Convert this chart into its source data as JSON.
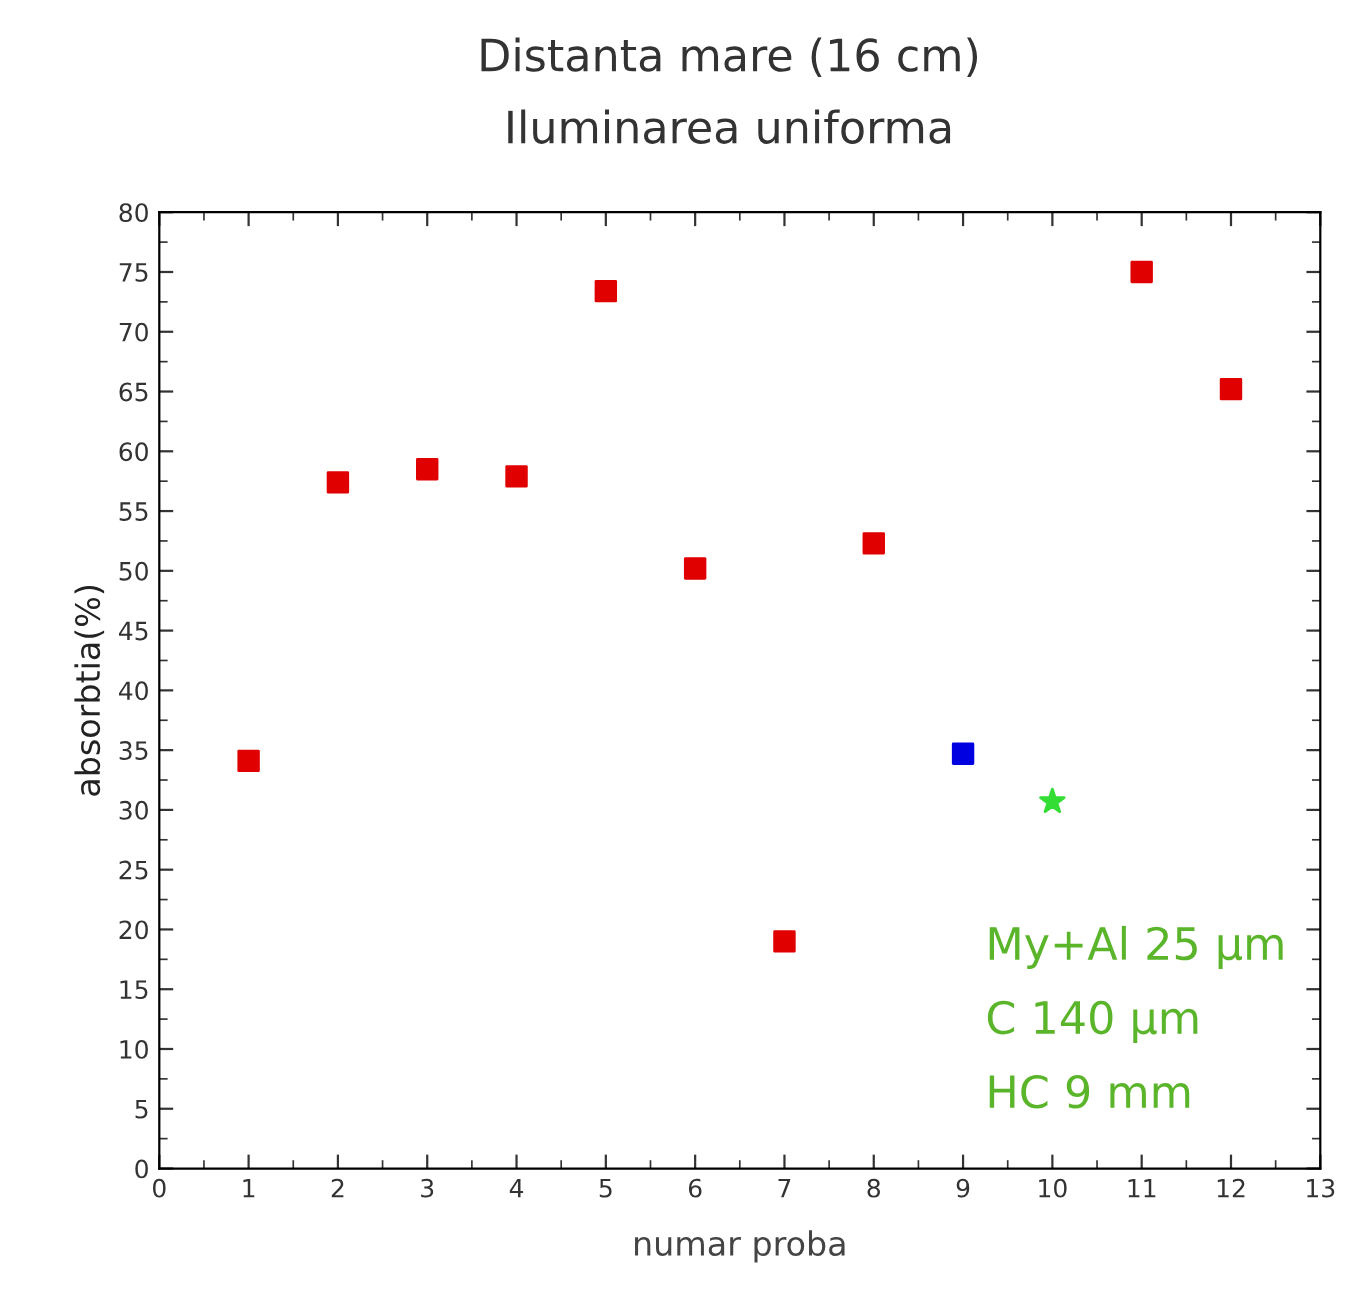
{
  "chart_data": {
    "type": "scatter",
    "title": "Distanta mare (16 cm)",
    "subtitle": "Iluminarea uniforma",
    "xlabel": "numar proba",
    "ylabel": "absorbtia(%)",
    "series": [
      {
        "color": "#e00000",
        "marker": "square",
        "x": [
          1,
          2,
          3,
          4,
          5,
          6,
          7,
          8,
          11,
          12
        ],
        "values": [
          34.1,
          57.4,
          58.5,
          57.9,
          73.4,
          50.2,
          19.0,
          52.3,
          75.0,
          65.2
        ]
      },
      {
        "color": "#0000e0",
        "marker": "square",
        "x": [
          9
        ],
        "values": [
          34.7
        ]
      },
      {
        "color": "#33dd33",
        "marker": "star",
        "x": [
          10
        ],
        "values": [
          30.7
        ]
      }
    ],
    "annotations": [
      "My+Al 25 µm",
      "C 140 µm",
      "HC 9 mm"
    ],
    "xlim": [
      0,
      13
    ],
    "xticks": [
      0,
      1,
      2,
      3,
      4,
      5,
      6,
      7,
      8,
      9,
      10,
      11,
      12,
      13
    ],
    "ylim": [
      0,
      80
    ],
    "yticks": [
      0,
      5,
      10,
      15,
      20,
      25,
      30,
      35,
      40,
      45,
      50,
      55,
      60,
      65,
      70,
      75,
      80
    ],
    "grid": false,
    "legend": false
  }
}
